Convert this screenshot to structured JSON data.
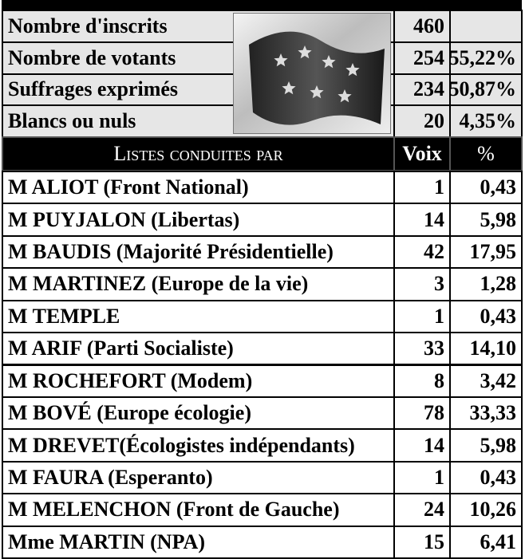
{
  "summary": {
    "rows": [
      {
        "label": "Nombre d'inscrits",
        "count": "460"
      },
      {
        "label": "Nombre de votants",
        "count": "254",
        "percent": "55,22%"
      },
      {
        "label": "Suffrages exprimés",
        "count": "234",
        "percent": "50,87%"
      },
      {
        "label": "Blancs ou nuls",
        "count": "20",
        "percent": "4,35%"
      }
    ]
  },
  "table": {
    "header": [
      "Listes conduites par",
      "Voix",
      "%"
    ],
    "rows": [
      [
        "M ALIOT (Front National)",
        "1",
        "0,43"
      ],
      [
        "M PUYJALON (Libertas)",
        "14",
        "5,98"
      ],
      [
        "M BAUDIS (Majorité Présidentielle)",
        "42",
        "17,95"
      ],
      [
        "M MARTINEZ (Europe de la vie)",
        "3",
        "1,28"
      ],
      [
        "M TEMPLE",
        "1",
        "0,43"
      ],
      [
        "M ARIF (Parti Socialiste)",
        "33",
        "14,10"
      ],
      [
        "M ROCHEFORT (Modem)",
        "8",
        "3,42"
      ],
      [
        "M BOVÉ (Europe écologie)",
        "78",
        "33,33"
      ],
      [
        "M DREVET(Écologistes indépendants)",
        "14",
        "5,98"
      ],
      [
        "M FAURA (Esperanto)",
        "1",
        "0,43"
      ],
      [
        "M MELENCHON (Front de Gauche)",
        "24",
        "10,26"
      ],
      [
        "Mme MARTIN (NPA)",
        "15",
        "6,41"
      ]
    ]
  }
}
